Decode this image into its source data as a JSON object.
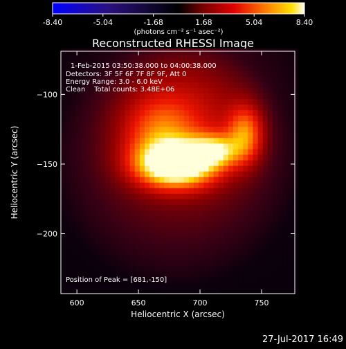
{
  "colorbar": {
    "ticks": [
      "-8.40",
      "-5.04",
      "-1.68",
      "1.68",
      "5.04",
      "8.40"
    ],
    "unit_label": "(photons cm⁻² s⁻¹ asec⁻²)",
    "range": [
      -8.4,
      8.4
    ],
    "colors": [
      "#0000ff",
      "#30106a",
      "#000000",
      "#6b0000",
      "#e00000",
      "#ff7a00",
      "#ffe000",
      "#ffffff"
    ]
  },
  "chart_data": {
    "type": "heatmap",
    "title": "Reconstructed RHESSI Image",
    "xlabel": "Heliocentric X (arcsec)",
    "ylabel": "Heliocentric Y (arcsec)",
    "xlim": [
      587,
      777
    ],
    "ylim": [
      -243,
      -69
    ],
    "x_ticks": [
      600,
      650,
      700,
      750
    ],
    "y_ticks": [
      -100,
      -150,
      -200
    ],
    "peak": [
      681,
      -150
    ],
    "sources": [
      {
        "x": 681,
        "y": -150,
        "sx": 22,
        "sy": 11,
        "amp": 1.0
      },
      {
        "x": 712,
        "y": -140,
        "sx": 14,
        "sy": 8,
        "amp": 0.55
      },
      {
        "x": 737,
        "y": -128,
        "sx": 10,
        "sy": 14,
        "amp": 0.5
      },
      {
        "x": 668,
        "y": -128,
        "sx": 20,
        "sy": 18,
        "amp": 0.35
      },
      {
        "x": 690,
        "y": -112,
        "sx": 45,
        "sy": 40,
        "amp": 0.25
      }
    ],
    "halo": {
      "x": 680,
      "y": -150,
      "rx": 85,
      "ry": 75,
      "amp": 0.18
    }
  },
  "annotations": {
    "time_range": "1-Feb-2015 03:50:38.000 to 04:00:38.000",
    "detectors": "Detectors: 3F 5F 6F 7F 8F 9F, Att 0",
    "energy": "Energy Range: 3.0 - 6.0 keV",
    "clean": "Clean    Total counts: 3.48E+06",
    "peak_text": "Position of Peak = [681,-150]"
  },
  "footer": {
    "date": "27-Jul-2017 16:49"
  }
}
